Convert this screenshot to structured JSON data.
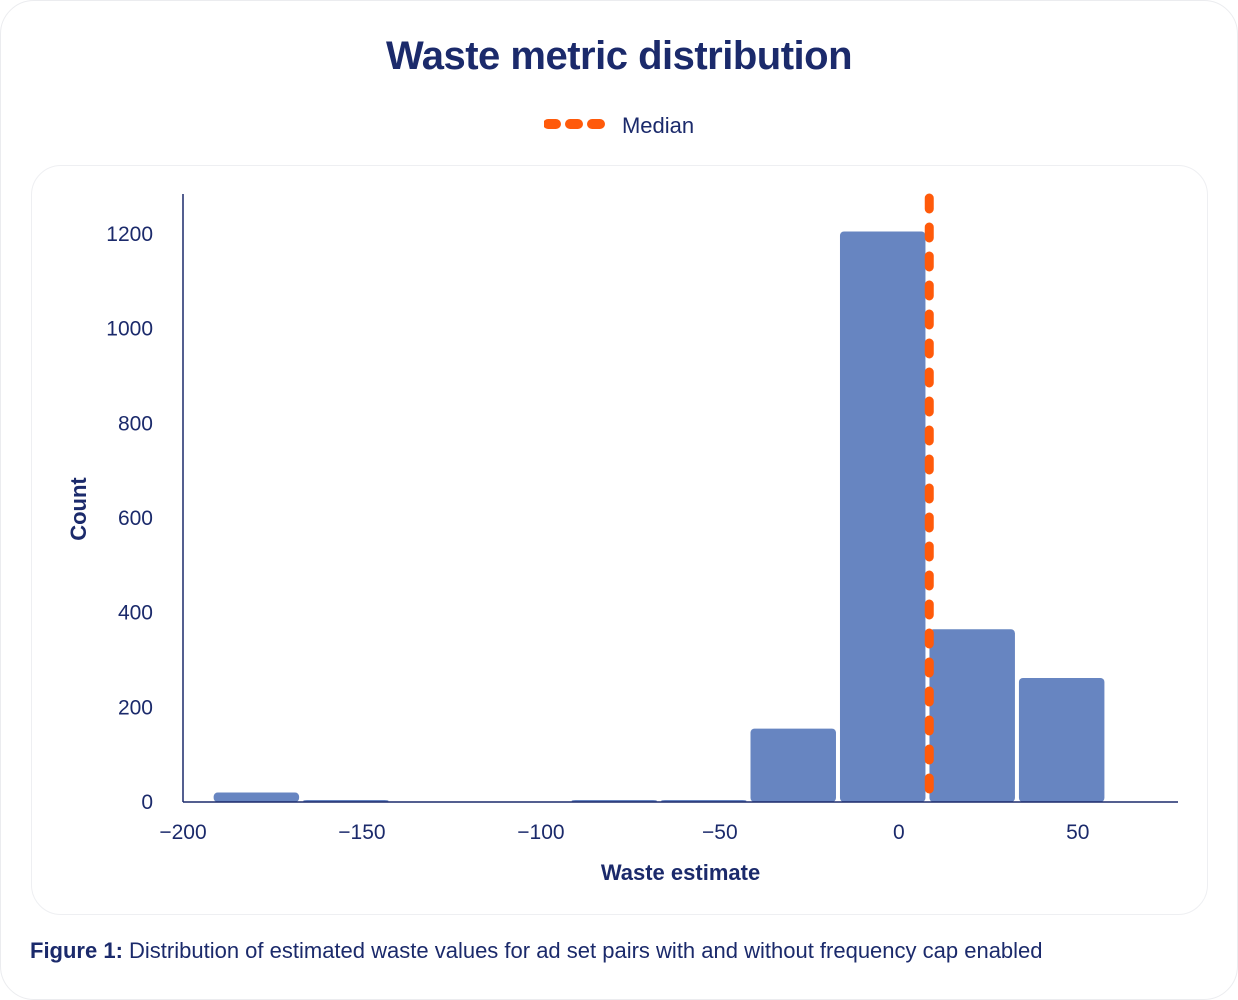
{
  "chart_data": {
    "type": "bar",
    "subtype": "histogram",
    "title": "Waste metric distribution",
    "xlabel": "Waste estimate",
    "ylabel": "Count",
    "xlim": [
      -200,
      78
    ],
    "ylim": [
      0,
      1280
    ],
    "xticks": [
      {
        "value": -200,
        "label": "−200"
      },
      {
        "value": -150,
        "label": "−150"
      },
      {
        "value": -100,
        "label": "−100"
      },
      {
        "value": -50,
        "label": "−50"
      },
      {
        "value": 0,
        "label": "0"
      },
      {
        "value": 50,
        "label": "50"
      }
    ],
    "yticks": [
      {
        "value": 0,
        "label": "0"
      },
      {
        "value": 200,
        "label": "200"
      },
      {
        "value": 400,
        "label": "400"
      },
      {
        "value": 600,
        "label": "600"
      },
      {
        "value": 800,
        "label": "800"
      },
      {
        "value": 1000,
        "label": "1000"
      },
      {
        "value": 1200,
        "label": "1200"
      }
    ],
    "bins": [
      {
        "x0": -192,
        "x1": -167,
        "count": 20
      },
      {
        "x0": -167,
        "x1": -142,
        "count": 4
      },
      {
        "x0": -142,
        "x1": -117,
        "count": 0
      },
      {
        "x0": -117,
        "x1": -92,
        "count": 0
      },
      {
        "x0": -92,
        "x1": -67,
        "count": 3
      },
      {
        "x0": -67,
        "x1": -42,
        "count": 3
      },
      {
        "x0": -42,
        "x1": -17,
        "count": 155
      },
      {
        "x0": -17,
        "x1": 8,
        "count": 1205
      },
      {
        "x0": 8,
        "x1": 33,
        "count": 365
      },
      {
        "x0": 33,
        "x1": 58,
        "count": 262
      }
    ],
    "median": 8.5,
    "legend": [
      {
        "label": "Median",
        "style": "dashed",
        "color": "#ff5a0a"
      }
    ],
    "bar_color": "#6785c1",
    "median_color": "#ff5a0a",
    "axis_color": "#1b2a6b"
  },
  "caption": {
    "label": "Figure 1:",
    "text": " Distribution of estimated waste values for ad set pairs with and without frequency cap enabled"
  }
}
